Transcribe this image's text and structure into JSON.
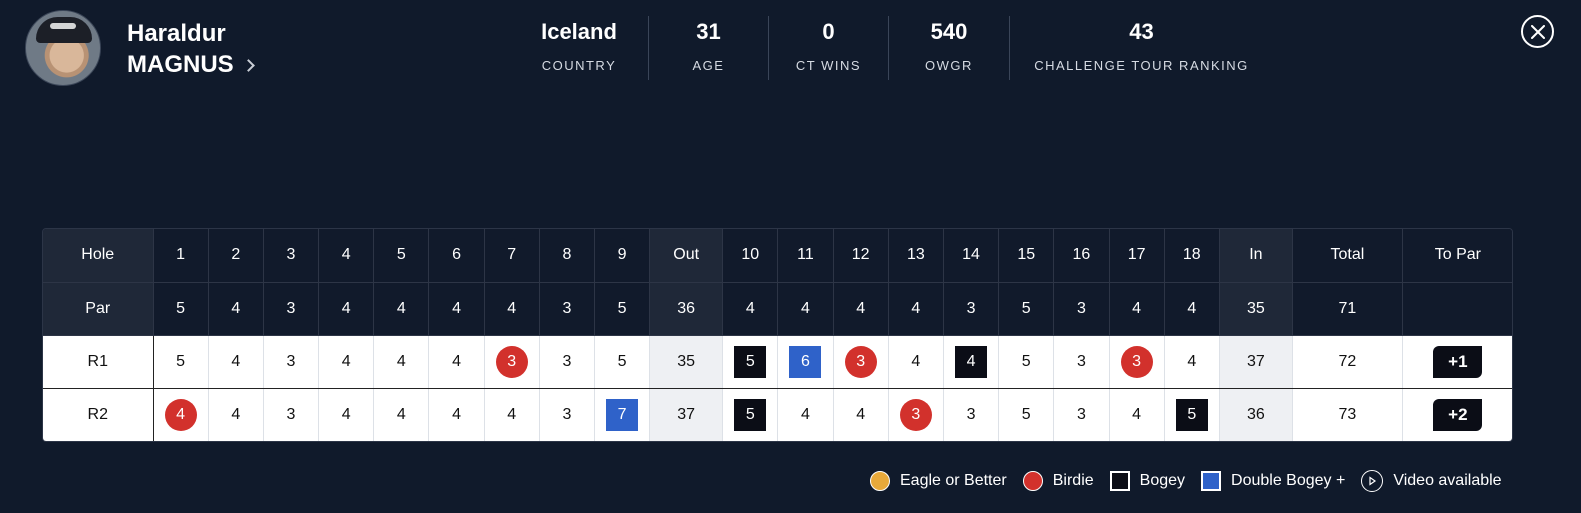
{
  "player": {
    "first_name": "Haraldur",
    "last_name": "MAGNUS"
  },
  "stats": [
    {
      "value": "Iceland",
      "label": "COUNTRY"
    },
    {
      "value": "31",
      "label": "AGE"
    },
    {
      "value": "0",
      "label": "CT WINS"
    },
    {
      "value": "540",
      "label": "OWGR"
    },
    {
      "value": "43",
      "label": "CHALLENGE TOUR RANKING"
    }
  ],
  "scorecard": {
    "hole_label": "Hole",
    "par_label": "Par",
    "holes_out": [
      "1",
      "2",
      "3",
      "4",
      "5",
      "6",
      "7",
      "8",
      "9"
    ],
    "out_label": "Out",
    "holes_in": [
      "10",
      "11",
      "12",
      "13",
      "14",
      "15",
      "16",
      "17",
      "18"
    ],
    "in_label": "In",
    "total_label": "Total",
    "topar_label": "To Par",
    "par_out": [
      "5",
      "4",
      "3",
      "4",
      "4",
      "4",
      "4",
      "3",
      "5"
    ],
    "par_out_total": "36",
    "par_in": [
      "4",
      "4",
      "4",
      "4",
      "3",
      "5",
      "3",
      "4",
      "4"
    ],
    "par_in_total": "35",
    "par_total": "71",
    "rounds": [
      {
        "label": "R1",
        "out": [
          {
            "v": "5",
            "m": ""
          },
          {
            "v": "4",
            "m": ""
          },
          {
            "v": "3",
            "m": ""
          },
          {
            "v": "4",
            "m": ""
          },
          {
            "v": "4",
            "m": ""
          },
          {
            "v": "4",
            "m": ""
          },
          {
            "v": "3",
            "m": "birdie"
          },
          {
            "v": "3",
            "m": ""
          },
          {
            "v": "5",
            "m": ""
          }
        ],
        "out_total": "35",
        "in": [
          {
            "v": "5",
            "m": "bogey"
          },
          {
            "v": "6",
            "m": "double"
          },
          {
            "v": "3",
            "m": "birdie"
          },
          {
            "v": "4",
            "m": ""
          },
          {
            "v": "4",
            "m": "bogey"
          },
          {
            "v": "5",
            "m": ""
          },
          {
            "v": "3",
            "m": ""
          },
          {
            "v": "3",
            "m": "birdie"
          },
          {
            "v": "4",
            "m": ""
          }
        ],
        "in_total": "37",
        "total": "72",
        "to_par": "+1"
      },
      {
        "label": "R2",
        "out": [
          {
            "v": "4",
            "m": "birdie"
          },
          {
            "v": "4",
            "m": ""
          },
          {
            "v": "3",
            "m": ""
          },
          {
            "v": "4",
            "m": ""
          },
          {
            "v": "4",
            "m": ""
          },
          {
            "v": "4",
            "m": ""
          },
          {
            "v": "4",
            "m": ""
          },
          {
            "v": "3",
            "m": ""
          },
          {
            "v": "7",
            "m": "double"
          }
        ],
        "out_total": "37",
        "in": [
          {
            "v": "5",
            "m": "bogey"
          },
          {
            "v": "4",
            "m": ""
          },
          {
            "v": "4",
            "m": ""
          },
          {
            "v": "3",
            "m": "birdie"
          },
          {
            "v": "3",
            "m": ""
          },
          {
            "v": "5",
            "m": ""
          },
          {
            "v": "3",
            "m": ""
          },
          {
            "v": "4",
            "m": ""
          },
          {
            "v": "5",
            "m": "bogey"
          }
        ],
        "in_total": "36",
        "total": "73",
        "to_par": "+2"
      }
    ]
  },
  "legend": [
    {
      "key": "eagle",
      "label": "Eagle or Better",
      "icon": "eagle-circle-icon"
    },
    {
      "key": "birdie",
      "label": "Birdie",
      "icon": "birdie-circle-icon"
    },
    {
      "key": "bogey",
      "label": "Bogey",
      "icon": "bogey-square-icon"
    },
    {
      "key": "double",
      "label": "Double Bogey +",
      "icon": "double-bogey-square-icon"
    },
    {
      "key": "video",
      "label": "Video available",
      "icon": "play-icon"
    }
  ],
  "colors": {
    "background": "#101a2b",
    "birdie": "#d2312c",
    "bogey": "#0b0d16",
    "double_bogey": "#2f62c9",
    "eagle": "#e8a93a"
  }
}
